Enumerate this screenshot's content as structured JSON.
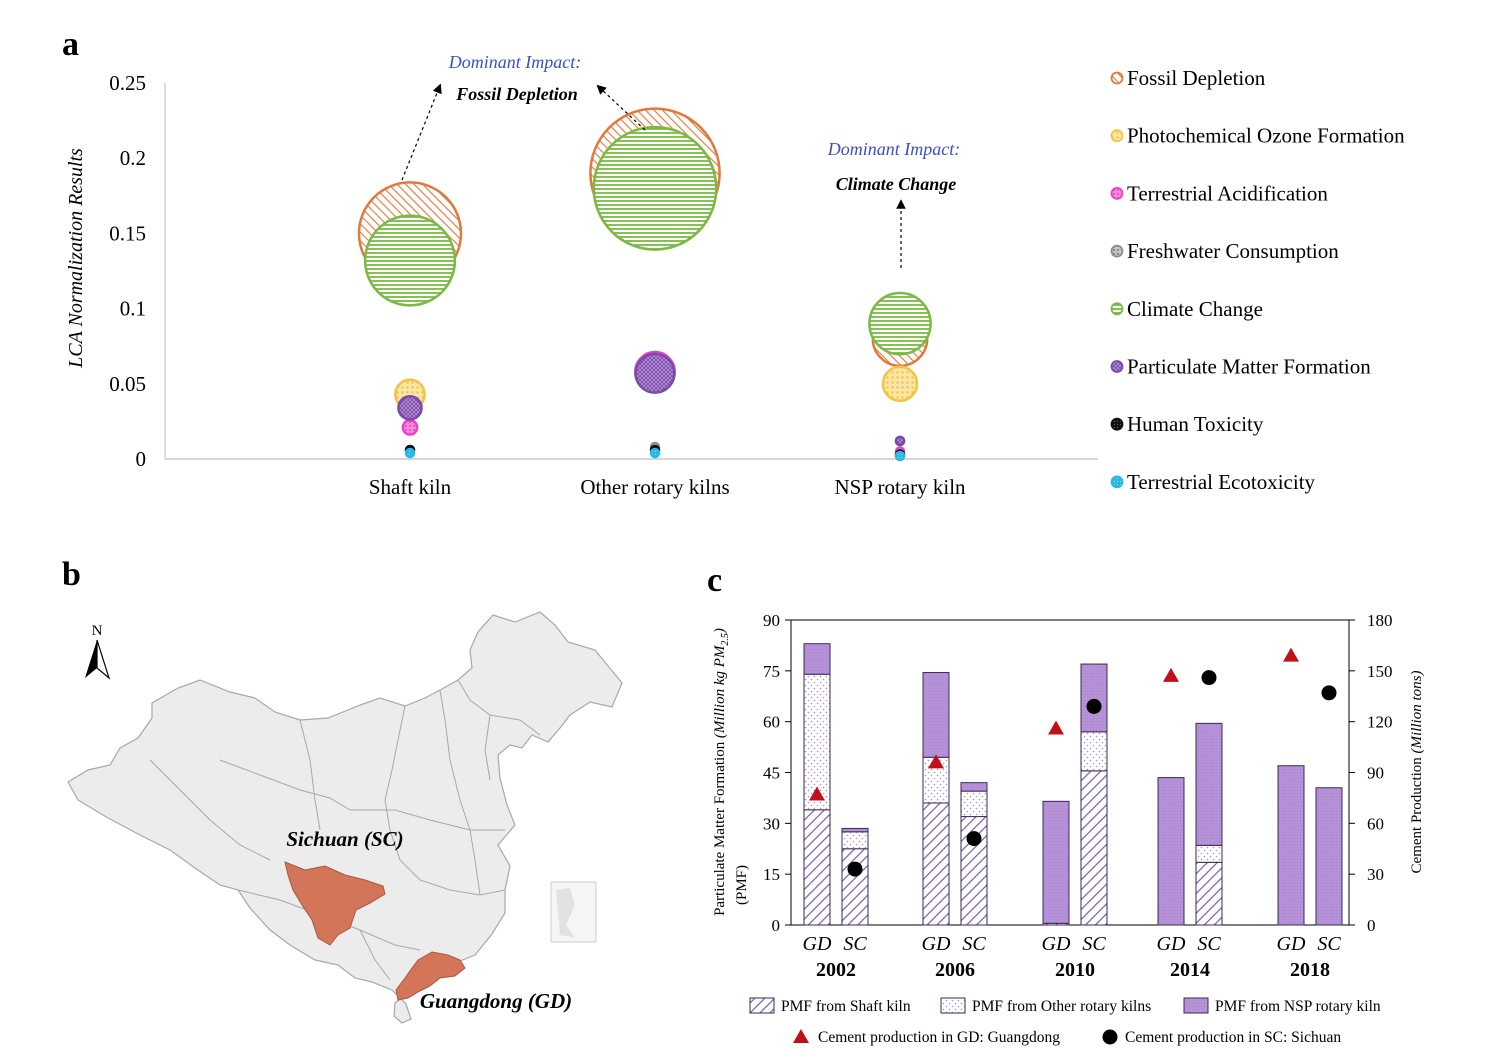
{
  "colors": {
    "fossil_depletion": "#E2783C",
    "photochemical_ozone_formation": "#F5C342",
    "terrestrial_acidification": "#EE3FC6",
    "freshwater_consumption": "#8C8C8C",
    "climate_change": "#79B944",
    "particulate_matter_formation": "#7A4AA8",
    "human_toxicity": "#111111",
    "terrestrial_ecotoxicity": "#28B8E8",
    "shaft_kiln_bar": "#7A5CA8",
    "other_rotary_bar": "#B08AD0",
    "nsp_bar": "#B591D8",
    "gd_marker": "#C0101A",
    "sc_marker": "#000000",
    "map_fill": "#ECECEC",
    "map_highlight": "#D27558",
    "annotation_blue": "#3A4FC8"
  },
  "panel_a": {
    "label": "a",
    "chart_data": {
      "type": "bubble",
      "ylabel": "LCA Normalization Results",
      "ylim": [
        0,
        0.25
      ],
      "yticks": [
        "0",
        "0.05",
        "0.1",
        "0.15",
        "0.2",
        "0.25"
      ],
      "categories": [
        "Shaft kiln",
        "Other rotary kilns",
        "NSP rotary kiln"
      ],
      "series": [
        {
          "name": "Fossil Depletion",
          "values": [
            0.15,
            0.19,
            0.08
          ]
        },
        {
          "name": "Photochemical Ozone Formation",
          "values": [
            0.043,
            0.18,
            0.05
          ]
        },
        {
          "name": "Terrestrial Acidification",
          "values": [
            0.021,
            0.058,
            0.005
          ]
        },
        {
          "name": "Freshwater Consumption",
          "values": [
            0.006,
            0.008,
            0.003
          ]
        },
        {
          "name": "Climate Change",
          "values": [
            0.132,
            0.18,
            0.09
          ]
        },
        {
          "name": "Particulate Matter Formation",
          "values": [
            0.034,
            0.057,
            0.012
          ]
        },
        {
          "name": "Human Toxicity",
          "values": [
            0.006,
            0.006,
            0.003
          ]
        },
        {
          "name": "Terrestrial Ecotoxicity",
          "values": [
            0.004,
            0.004,
            0.002
          ]
        }
      ],
      "legend_position": "right"
    },
    "annotations": {
      "dominant_label_1": "Dominant Impact:",
      "dominant_value_1": "Fossil Depletion",
      "dominant_label_2": "Dominant Impact:",
      "dominant_value_2": "Climate Change"
    }
  },
  "panel_b": {
    "label": "b",
    "north_label": "N",
    "region_1": "Sichuan (SC)",
    "region_2": "Guangdong (GD)"
  },
  "panel_c": {
    "label": "c",
    "chart_data": {
      "type": "bar",
      "stacked": true,
      "ylabel_left_main": "Particulate Matter Formation",
      "ylabel_left_unit": "(Million kg PM",
      "ylabel_left_sub": "2.5",
      "ylabel_left_close": ")",
      "ylabel_left_abbr": "(PMF)",
      "ylabel_right_main": "Cement Production",
      "ylabel_right_unit": "(Million tons)",
      "ylim_left": [
        0,
        90
      ],
      "ylim_right": [
        0,
        180
      ],
      "yticks_left": [
        "0",
        "15",
        "30",
        "45",
        "60",
        "75",
        "90"
      ],
      "yticks_right": [
        "0",
        "30",
        "60",
        "90",
        "120",
        "150",
        "180"
      ],
      "years": [
        "2002",
        "2006",
        "2010",
        "2014",
        "2018"
      ],
      "regions": [
        "GD",
        "SC"
      ],
      "series": [
        {
          "name": "PMF from Shaft kiln",
          "values": [
            [
              34,
              22.5
            ],
            [
              36,
              32
            ],
            [
              0.5,
              45.5
            ],
            [
              0,
              18.5
            ],
            [
              0,
              0
            ]
          ]
        },
        {
          "name": "PMF from Other rotary kilns",
          "values": [
            [
              40,
              5
            ],
            [
              13.5,
              7.5
            ],
            [
              0,
              11.5
            ],
            [
              0,
              5
            ],
            [
              0,
              0
            ]
          ]
        },
        {
          "name": "PMF from NSP rotary kiln",
          "values": [
            [
              9,
              1
            ],
            [
              25,
              2.5
            ],
            [
              36,
              20
            ],
            [
              43.5,
              36
            ],
            [
              47,
              40.5
            ]
          ]
        }
      ],
      "markers": [
        {
          "name": "Cement production in GD: Guangdong",
          "values": [
            77,
            96,
            116,
            147,
            159
          ]
        },
        {
          "name": "Cement production in SC: Sichuan",
          "values": [
            33,
            51,
            129,
            146,
            137
          ]
        }
      ],
      "legend_position": "bottom"
    }
  }
}
